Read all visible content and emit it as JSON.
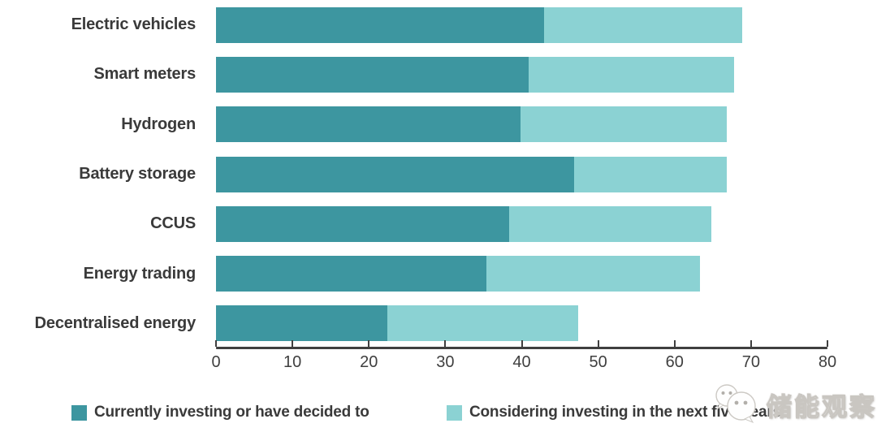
{
  "chart_data": {
    "type": "bar",
    "orientation": "horizontal",
    "title": "",
    "categories": [
      "Electric vehicles",
      "Smart meters",
      "Hydrogen",
      "Battery storage",
      "CCUS",
      "Energy trading",
      "Decentralised energy"
    ],
    "series": [
      {
        "name": "Currently investing or have decided to",
        "color": "#3d96a0",
        "values": [
          43,
          41,
          40,
          47,
          38.5,
          35.5,
          22.5
        ]
      },
      {
        "name": "Considering investing in the next five years",
        "color": "#8bd2d3",
        "values": [
          26,
          27,
          27,
          20,
          26.5,
          28,
          25
        ]
      }
    ],
    "xlim": [
      0,
      80
    ],
    "xticks": [
      0,
      10,
      20,
      30,
      40,
      50,
      60,
      70,
      80
    ],
    "grid": false,
    "legend_position": "bottom"
  },
  "watermark": {
    "icon": "wechat-chat-bubbles-icon",
    "text": "储能观察"
  },
  "colors": {
    "axis": "#3f3f3f",
    "label_text": "#3a3a3a",
    "background": "#ffffff"
  }
}
